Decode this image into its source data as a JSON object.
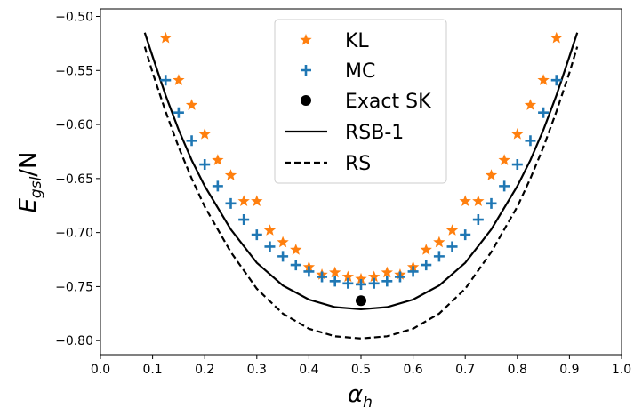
{
  "chart_data": {
    "type": "scatter",
    "xlabel": "α",
    "xlabel_sub": "h",
    "ylabel": "E",
    "ylabel_sub": "gsl",
    "ylabel_suffix": "/N",
    "xlim": [
      0.0,
      1.0
    ],
    "ylim": [
      -0.813,
      -0.493
    ],
    "xticks": [
      0.0,
      0.1,
      0.2,
      0.3,
      0.4,
      0.5,
      0.6,
      0.7,
      0.8,
      0.9,
      1.0
    ],
    "xtick_labels": [
      "0.0",
      "0.1",
      "0.2",
      "0.3",
      "0.4",
      "0.5",
      "0.6",
      "0.7",
      "0.8",
      "0.9",
      "1.0"
    ],
    "yticks": [
      -0.8,
      -0.75,
      -0.7,
      -0.65,
      -0.6,
      -0.55,
      -0.5
    ],
    "ytick_labels": [
      "−0.80",
      "−0.75",
      "−0.70",
      "−0.65",
      "−0.60",
      "−0.55",
      "−0.50"
    ],
    "grid": false,
    "legend_position": "top-center",
    "series": [
      {
        "name": "KL",
        "marker": "star",
        "color": "#ff7f0e",
        "x": [
          0.125,
          0.15,
          0.175,
          0.2,
          0.225,
          0.25,
          0.275,
          0.3,
          0.325,
          0.35,
          0.375,
          0.4,
          0.425,
          0.45,
          0.475,
          0.5,
          0.525,
          0.55,
          0.575,
          0.6,
          0.625,
          0.65,
          0.675,
          0.7,
          0.725,
          0.75,
          0.775,
          0.8,
          0.825,
          0.85,
          0.875
        ],
        "y": [
          -0.52,
          -0.559,
          -0.582,
          -0.609,
          -0.633,
          -0.647,
          -0.671,
          -0.671,
          -0.698,
          -0.709,
          -0.716,
          -0.732,
          -0.739,
          -0.737,
          -0.741,
          -0.743,
          -0.741,
          -0.737,
          -0.739,
          -0.732,
          -0.716,
          -0.709,
          -0.698,
          -0.671,
          -0.671,
          -0.647,
          -0.633,
          -0.609,
          -0.582,
          -0.559,
          -0.52
        ]
      },
      {
        "name": "MC",
        "marker": "plus",
        "color": "#1f77b4",
        "x": [
          0.125,
          0.15,
          0.175,
          0.2,
          0.225,
          0.25,
          0.275,
          0.3,
          0.325,
          0.35,
          0.375,
          0.4,
          0.425,
          0.45,
          0.475,
          0.5,
          0.525,
          0.55,
          0.575,
          0.6,
          0.625,
          0.65,
          0.675,
          0.7,
          0.725,
          0.75,
          0.775,
          0.8,
          0.825,
          0.85,
          0.875
        ],
        "y": [
          -0.559,
          -0.589,
          -0.615,
          -0.637,
          -0.657,
          -0.673,
          -0.688,
          -0.702,
          -0.713,
          -0.722,
          -0.73,
          -0.736,
          -0.741,
          -0.745,
          -0.747,
          -0.748,
          -0.747,
          -0.745,
          -0.741,
          -0.736,
          -0.73,
          -0.722,
          -0.713,
          -0.702,
          -0.688,
          -0.673,
          -0.657,
          -0.637,
          -0.615,
          -0.589,
          -0.559
        ]
      },
      {
        "name": "Exact SK",
        "marker": "circle",
        "color": "#000000",
        "x": [
          0.5
        ],
        "y": [
          -0.763
        ]
      },
      {
        "name": "RSB-1",
        "marker": "line-solid",
        "color": "#000000",
        "x": [
          0.085,
          0.1,
          0.125,
          0.15,
          0.175,
          0.2,
          0.25,
          0.3,
          0.35,
          0.4,
          0.45,
          0.5,
          0.55,
          0.6,
          0.65,
          0.7,
          0.75,
          0.8,
          0.825,
          0.85,
          0.875,
          0.9,
          0.915
        ],
        "y": [
          -0.515,
          -0.537,
          -0.573,
          -0.605,
          -0.633,
          -0.657,
          -0.697,
          -0.728,
          -0.749,
          -0.762,
          -0.769,
          -0.771,
          -0.769,
          -0.762,
          -0.749,
          -0.728,
          -0.697,
          -0.657,
          -0.633,
          -0.605,
          -0.573,
          -0.537,
          -0.515
        ]
      },
      {
        "name": "RS",
        "marker": "line-dashed",
        "color": "#000000",
        "x": [
          0.085,
          0.1,
          0.125,
          0.15,
          0.175,
          0.2,
          0.25,
          0.3,
          0.35,
          0.4,
          0.45,
          0.5,
          0.55,
          0.6,
          0.65,
          0.7,
          0.75,
          0.8,
          0.825,
          0.85,
          0.875,
          0.9,
          0.915
        ],
        "y": [
          -0.528,
          -0.552,
          -0.588,
          -0.621,
          -0.65,
          -0.676,
          -0.718,
          -0.752,
          -0.775,
          -0.789,
          -0.796,
          -0.798,
          -0.796,
          -0.789,
          -0.775,
          -0.752,
          -0.718,
          -0.676,
          -0.65,
          -0.621,
          -0.588,
          -0.552,
          -0.528
        ]
      }
    ]
  }
}
